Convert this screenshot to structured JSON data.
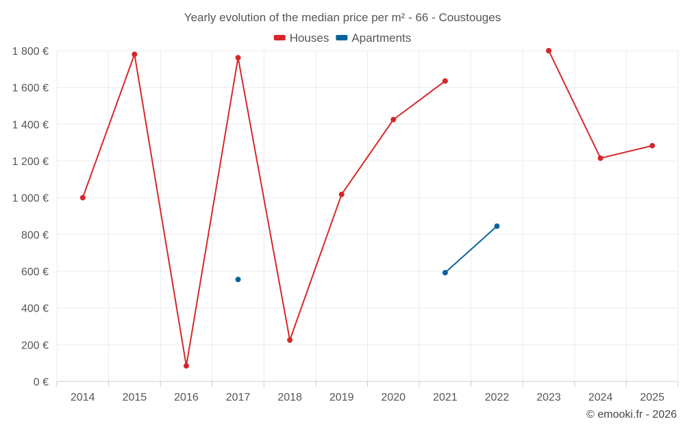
{
  "chart_data": {
    "type": "line",
    "title": "Yearly evolution of the median price per m² - 66 - Coustouges",
    "categories": [
      "2014",
      "2015",
      "2016",
      "2017",
      "2018",
      "2019",
      "2020",
      "2021",
      "2022",
      "2023",
      "2024",
      "2025"
    ],
    "ylim": [
      0,
      1800
    ],
    "yticks": [
      0,
      200,
      400,
      600,
      800,
      1000,
      1200,
      1400,
      1600,
      1800
    ],
    "ytick_labels": [
      "0 €",
      "200 €",
      "400 €",
      "600 €",
      "800 €",
      "1 000 €",
      "1 200 €",
      "1 400 €",
      "1 600 €",
      "1 800 €"
    ],
    "grid": true,
    "legend_position": "top-center",
    "series": [
      {
        "name": "Houses",
        "color": "#d62728",
        "values": [
          1000,
          1780,
          85,
          1762,
          225,
          1018,
          1425,
          1635,
          null,
          1800,
          1215,
          1283
        ]
      },
      {
        "name": "Apartments",
        "color": "#08639c",
        "values": [
          null,
          null,
          null,
          555,
          null,
          null,
          null,
          592,
          845,
          null,
          null,
          null
        ]
      }
    ],
    "credit": "© emooki.fr - 2026"
  }
}
